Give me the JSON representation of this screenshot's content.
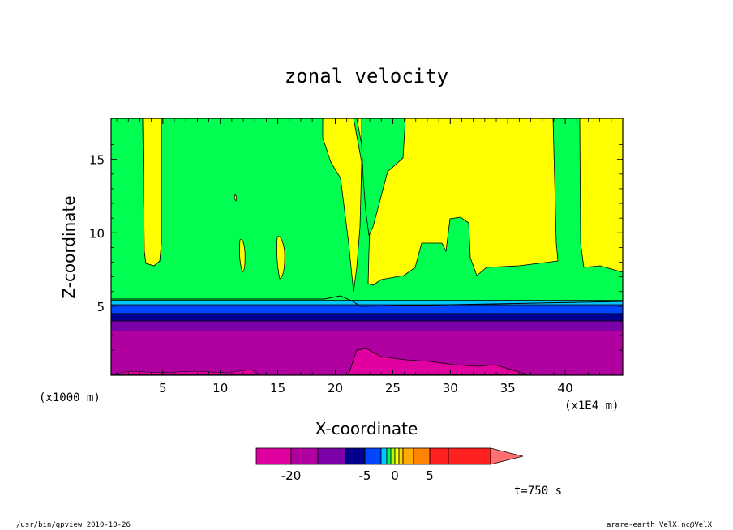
{
  "chart_data": {
    "type": "heatmap",
    "title": "zonal velocity",
    "xlabel": "X-coordinate",
    "ylabel": "Z-coordinate",
    "x_unit_left": "(x1000 m)",
    "x_unit_right": "(x1E4 m)",
    "x_ticks": [
      5,
      10,
      15,
      20,
      25,
      30,
      35,
      40
    ],
    "y_ticks": [
      5,
      10,
      15
    ],
    "xlim": [
      0.5,
      45
    ],
    "ylim": [
      0.3,
      17.8
    ],
    "colorbar": {
      "levels": [
        -25,
        -20,
        -15,
        -10,
        -5,
        -2.5,
        -1,
        -0.5,
        0,
        0.5,
        1,
        2.5,
        5,
        10,
        15
      ],
      "colors": [
        "#e0009f",
        "#b0009f",
        "#7c00a8",
        "#00008c",
        "#0046ff",
        "#00c8ff",
        "#00ff50",
        "#aaff00",
        "#ffff00",
        "#ffd200",
        "#ffaa00",
        "#ff8200",
        "#ff2020",
        "#ff7070"
      ],
      "labels": [
        {
          "value": -20,
          "text": "-20"
        },
        {
          "value": -5,
          "text": "-5"
        },
        {
          "value": 0,
          "text": "0"
        },
        {
          "value": 5,
          "text": "5"
        }
      ]
    },
    "layers": [
      {
        "z": [
          0.3,
          3.3
        ],
        "value": -20,
        "color": "#b0009f"
      },
      {
        "z": [
          3.3,
          4.0
        ],
        "value": -15,
        "color": "#7c00a8"
      },
      {
        "z": [
          4.0,
          4.5
        ],
        "value": -10,
        "color": "#00008c"
      },
      {
        "z": [
          4.5,
          5.1
        ],
        "value": -5,
        "color": "#0046ff"
      },
      {
        "z": [
          5.1,
          5.4
        ],
        "value": -2.5,
        "color": "#00c8ff"
      },
      {
        "z": [
          5.4,
          17.8
        ],
        "value": -1,
        "color": "#00ff50"
      }
    ]
  },
  "annotations": {
    "time": "t=750 s",
    "footer_left": "/usr/bin/gpview  2010-10-26",
    "footer_right": "arare-earth_VelX.nc@VelX"
  }
}
